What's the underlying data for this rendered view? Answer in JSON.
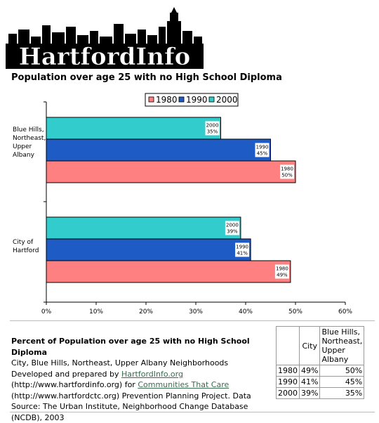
{
  "logo": {
    "text": "HartfordInfo"
  },
  "chart_data": {
    "type": "bar",
    "orientation": "horizontal",
    "title": "Population over age 25 with no High School Diploma",
    "categories": [
      "Blue Hills, Northeast, Upper Albany",
      "City of Hartford"
    ],
    "category_lines": [
      [
        "Blue Hills,",
        "Northeast,",
        "Upper",
        "Albany"
      ],
      [
        "City of",
        "Hartford"
      ]
    ],
    "series": [
      {
        "name": "1980",
        "color": "#ff8080",
        "values": [
          50,
          49
        ],
        "labels": [
          "50%",
          "49%"
        ]
      },
      {
        "name": "1990",
        "color": "#1f5bc4",
        "values": [
          45,
          41
        ],
        "labels": [
          "45%",
          "41%"
        ]
      },
      {
        "name": "2000",
        "color": "#33cccc",
        "values": [
          35,
          39
        ],
        "labels": [
          "35%",
          "39%"
        ]
      }
    ],
    "legend_order": [
      "1980",
      "1990",
      "2000"
    ],
    "legend_position": "top-center",
    "xlim": [
      0,
      60
    ],
    "x_ticks": [
      "0%",
      "10%",
      "20%",
      "30%",
      "40%",
      "50%",
      "60%"
    ],
    "grid": false
  },
  "description": {
    "title": "Percent of Population over age 25 with no High School Diploma",
    "line1": "City, Blue Hills, Northeast, Upper Albany Neighborhoods Developed and prepared by",
    "link1": "HartfordInfo.org",
    "line2": "(http://www.hartfordinfo.org) for",
    "link2": "Communities That Care",
    "line3": "(http://www.hartfordctc.org) Prevention Planning Project. Data Source: The Urban Institute, Neighborhood Change Database (NCDB), 2003"
  },
  "table": {
    "headers": [
      "City",
      "Blue Hills, Northeast, Upper Albany"
    ],
    "rows": [
      {
        "year": "1980",
        "city": "49%",
        "nb": "50%"
      },
      {
        "year": "1990",
        "city": "41%",
        "nb": "45%"
      },
      {
        "year": "2000",
        "city": "39%",
        "nb": "35%"
      }
    ]
  }
}
